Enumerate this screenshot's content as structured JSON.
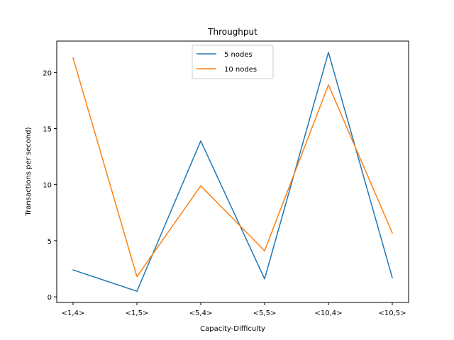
{
  "chart_data": {
    "type": "line",
    "title": "Throughput",
    "xlabel": "Capacity-Difficulty",
    "ylabel": "Transactions per second)",
    "categories": [
      "<1,4>",
      "<1,5>",
      "<5,4>",
      "<5,5>",
      "<10,4>",
      "<10,5>"
    ],
    "series": [
      {
        "name": "5 nodes",
        "color": "#1f77b4",
        "values": [
          2.4,
          0.5,
          13.9,
          1.6,
          21.8,
          1.7
        ]
      },
      {
        "name": "10 nodes",
        "color": "#ff7f0e",
        "values": [
          21.3,
          1.8,
          9.9,
          4.1,
          18.9,
          5.7
        ]
      }
    ],
    "ylim": [
      -0.5,
      22.8
    ],
    "yticks": [
      0,
      5,
      10,
      15,
      20
    ],
    "grid": false,
    "legend": "upper-center"
  }
}
